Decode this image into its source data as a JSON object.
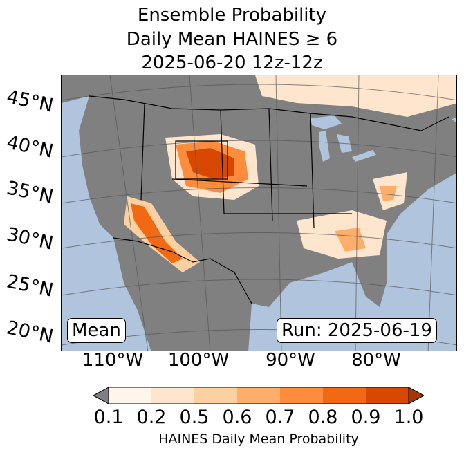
{
  "title": {
    "line1": "Ensemble Probability",
    "line2": "Daily Mean HAINES ≥ 6",
    "line3": "2025-06-20 12z-12z"
  },
  "labels": {
    "mean_box": "Mean",
    "run_box": "Run: 2025-06-19"
  },
  "lat_ticks": [
    "45°N",
    "40°N",
    "35°N",
    "30°N",
    "25°N",
    "20°N"
  ],
  "lon_ticks": [
    "110°W",
    "100°W",
    "90°W",
    "80°W"
  ],
  "colorbar": {
    "label": "HAINES Daily Mean Probability",
    "ticks": [
      "0.1",
      "0.2",
      "0.5",
      "0.6",
      "0.7",
      "0.8",
      "0.9",
      "1.0"
    ],
    "under_color": "#808080",
    "bin_colors": [
      "#fff5eb",
      "#fee6ce",
      "#fdd0a2",
      "#fdae6b",
      "#fd8d3c",
      "#f16913",
      "#d94801"
    ],
    "over_color": "#a63603"
  },
  "map_colors": {
    "ocean": "#b0c4de",
    "land_low": "#808080"
  }
}
